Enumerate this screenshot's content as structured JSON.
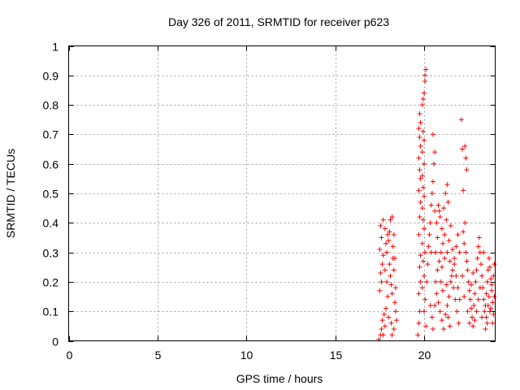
{
  "chart_data": {
    "type": "scatter",
    "title": "Day 326 of 2011, SRMTID for receiver p623",
    "xlabel": "GPS time / hours",
    "ylabel": "SRMTID / TECUs",
    "xlim": [
      0,
      24
    ],
    "ylim": [
      0,
      1
    ],
    "x_ticks": [
      "0",
      "5",
      "10",
      "15",
      "20"
    ],
    "y_ticks": [
      "0",
      "0.1",
      "0.2",
      "0.3",
      "0.4",
      "0.5",
      "0.6",
      "0.7",
      "0.8",
      "0.9",
      "1"
    ],
    "grid": true,
    "marker": "plus",
    "color": "#ff0000",
    "series": [
      {
        "points": [
          [
            17.45,
            0.005
          ],
          [
            17.55,
            0.02
          ],
          [
            17.6,
            0.04
          ],
          [
            17.65,
            0.07
          ],
          [
            17.7,
            0.02
          ],
          [
            17.75,
            0.09
          ],
          [
            17.8,
            0.05
          ],
          [
            17.85,
            0.11
          ],
          [
            17.5,
            0.17
          ],
          [
            17.6,
            0.2
          ],
          [
            17.55,
            0.23
          ],
          [
            17.65,
            0.26
          ],
          [
            17.7,
            0.29
          ],
          [
            17.5,
            0.31
          ],
          [
            17.6,
            0.35
          ],
          [
            17.55,
            0.39
          ],
          [
            17.7,
            0.41
          ],
          [
            17.8,
            0.38
          ],
          [
            17.85,
            0.33
          ],
          [
            17.9,
            0.3
          ],
          [
            17.95,
            0.36
          ],
          [
            18.0,
            0.34
          ],
          [
            18.05,
            0.26
          ],
          [
            18.1,
            0.22
          ],
          [
            18.15,
            0.19
          ],
          [
            18.2,
            0.16
          ],
          [
            18.25,
            0.28
          ],
          [
            18.3,
            0.24
          ],
          [
            18.35,
            0.13
          ],
          [
            18.4,
            0.1
          ],
          [
            18.45,
            0.07
          ],
          [
            18.3,
            0.04
          ],
          [
            18.2,
            0.02
          ],
          [
            18.1,
            0.41
          ],
          [
            18.2,
            0.42
          ],
          [
            18.05,
            0.37
          ],
          [
            18.3,
            0.36
          ],
          [
            17.95,
            0.15
          ],
          [
            18.0,
            0.08
          ],
          [
            18.15,
            0.06
          ],
          [
            17.9,
            0.2
          ],
          [
            18.4,
            0.18
          ],
          [
            18.35,
            0.28
          ],
          [
            17.8,
            0.24
          ],
          [
            18.25,
            0.32
          ],
          [
            19.65,
            0.02
          ],
          [
            19.7,
            0.06
          ],
          [
            19.75,
            0.1
          ],
          [
            19.7,
            0.16
          ],
          [
            19.8,
            0.2
          ],
          [
            19.75,
            0.25
          ],
          [
            19.8,
            0.29
          ],
          [
            19.7,
            0.36
          ],
          [
            19.75,
            0.42
          ],
          [
            19.8,
            0.47
          ],
          [
            19.7,
            0.51
          ],
          [
            19.8,
            0.55
          ],
          [
            19.75,
            0.58
          ],
          [
            19.7,
            0.62
          ],
          [
            19.8,
            0.66
          ],
          [
            19.75,
            0.69
          ],
          [
            19.7,
            0.72
          ],
          [
            19.8,
            0.74
          ],
          [
            19.75,
            0.77
          ],
          [
            19.9,
            0.8
          ],
          [
            19.95,
            0.82
          ],
          [
            20.0,
            0.84
          ],
          [
            20.05,
            0.88
          ],
          [
            20.1,
            0.92
          ],
          [
            20.05,
            0.9
          ],
          [
            19.95,
            0.71
          ],
          [
            20.0,
            0.68
          ],
          [
            19.9,
            0.64
          ],
          [
            20.0,
            0.6
          ],
          [
            19.9,
            0.56
          ],
          [
            19.95,
            0.52
          ],
          [
            20.0,
            0.49
          ],
          [
            19.9,
            0.45
          ],
          [
            19.95,
            0.41
          ],
          [
            20.0,
            0.38
          ],
          [
            19.9,
            0.33
          ],
          [
            20.05,
            0.3
          ],
          [
            19.95,
            0.27
          ],
          [
            20.0,
            0.22
          ],
          [
            19.9,
            0.18
          ],
          [
            20.05,
            0.14
          ],
          [
            20.0,
            0.1
          ],
          [
            20.1,
            0.05
          ],
          [
            20.15,
            0.2
          ],
          [
            20.2,
            0.26
          ],
          [
            20.25,
            0.32
          ],
          [
            20.3,
            0.36
          ],
          [
            20.35,
            0.4
          ],
          [
            20.4,
            0.46
          ],
          [
            20.45,
            0.5
          ],
          [
            20.5,
            0.54
          ],
          [
            20.55,
            0.6
          ],
          [
            20.6,
            0.64
          ],
          [
            20.5,
            0.7
          ],
          [
            20.4,
            0.3
          ],
          [
            20.35,
            0.12
          ],
          [
            20.45,
            0.08
          ],
          [
            20.5,
            0.04
          ],
          [
            20.6,
            0.44
          ],
          [
            20.7,
            0.4
          ],
          [
            20.8,
            0.46
          ],
          [
            20.9,
            0.42
          ],
          [
            21.0,
            0.38
          ],
          [
            21.1,
            0.45
          ],
          [
            21.2,
            0.5
          ],
          [
            21.3,
            0.53
          ],
          [
            21.35,
            0.47
          ],
          [
            21.25,
            0.41
          ],
          [
            21.15,
            0.36
          ],
          [
            21.05,
            0.33
          ],
          [
            20.95,
            0.3
          ],
          [
            20.85,
            0.27
          ],
          [
            20.75,
            0.24
          ],
          [
            20.65,
            0.2
          ],
          [
            20.7,
            0.16
          ],
          [
            20.8,
            0.13
          ],
          [
            20.9,
            0.1
          ],
          [
            21.0,
            0.07
          ],
          [
            21.1,
            0.04
          ],
          [
            21.2,
            0.09
          ],
          [
            21.3,
            0.12
          ],
          [
            21.4,
            0.15
          ],
          [
            21.5,
            0.2
          ],
          [
            21.6,
            0.24
          ],
          [
            21.7,
            0.28
          ],
          [
            21.8,
            0.32
          ],
          [
            21.9,
            0.36
          ],
          [
            22.0,
            0.3
          ],
          [
            21.45,
            0.27
          ],
          [
            21.55,
            0.22
          ],
          [
            21.65,
            0.18
          ],
          [
            21.75,
            0.14
          ],
          [
            21.85,
            0.1
          ],
          [
            21.95,
            0.06
          ],
          [
            20.75,
            0.35
          ],
          [
            20.85,
            0.44
          ],
          [
            21.0,
            0.25
          ],
          [
            21.15,
            0.28
          ],
          [
            21.3,
            0.3
          ],
          [
            21.4,
            0.34
          ],
          [
            21.5,
            0.39
          ],
          [
            21.6,
            0.31
          ],
          [
            21.7,
            0.26
          ],
          [
            21.8,
            0.22
          ],
          [
            21.9,
            0.18
          ],
          [
            22.0,
            0.14
          ],
          [
            20.65,
            0.3
          ],
          [
            20.6,
            0.12
          ],
          [
            20.95,
            0.2
          ],
          [
            21.05,
            0.17
          ],
          [
            21.25,
            0.19
          ],
          [
            21.35,
            0.08
          ],
          [
            21.45,
            0.05
          ],
          [
            22.1,
            0.75
          ],
          [
            22.15,
            0.65
          ],
          [
            22.2,
            0.51
          ],
          [
            22.3,
            0.66
          ],
          [
            22.35,
            0.62
          ],
          [
            22.4,
            0.58
          ],
          [
            22.3,
            0.4
          ],
          [
            22.2,
            0.37
          ],
          [
            22.25,
            0.33
          ],
          [
            22.35,
            0.3
          ],
          [
            22.4,
            0.27
          ],
          [
            22.45,
            0.24
          ],
          [
            22.5,
            0.2
          ],
          [
            22.55,
            0.17
          ],
          [
            22.6,
            0.14
          ],
          [
            22.65,
            0.11
          ],
          [
            22.7,
            0.08
          ],
          [
            22.75,
            0.05
          ],
          [
            22.8,
            0.12
          ],
          [
            22.85,
            0.16
          ],
          [
            22.9,
            0.2
          ],
          [
            22.95,
            0.24
          ],
          [
            23.0,
            0.28
          ],
          [
            23.05,
            0.32
          ],
          [
            23.1,
            0.35
          ],
          [
            23.15,
            0.3
          ],
          [
            23.2,
            0.26
          ],
          [
            23.25,
            0.22
          ],
          [
            23.3,
            0.18
          ],
          [
            23.35,
            0.14
          ],
          [
            23.4,
            0.1
          ],
          [
            23.45,
            0.12
          ],
          [
            23.5,
            0.16
          ],
          [
            23.55,
            0.2
          ],
          [
            23.6,
            0.24
          ],
          [
            23.65,
            0.28
          ],
          [
            23.7,
            0.25
          ],
          [
            23.75,
            0.21
          ],
          [
            23.8,
            0.17
          ],
          [
            23.85,
            0.13
          ],
          [
            23.9,
            0.09
          ],
          [
            23.95,
            0.15
          ],
          [
            23.5,
            0.08
          ],
          [
            23.6,
            0.12
          ],
          [
            23.7,
            0.1
          ],
          [
            23.8,
            0.19
          ],
          [
            23.9,
            0.22
          ],
          [
            23.95,
            0.26
          ],
          [
            22.15,
            0.22
          ],
          [
            22.25,
            0.15
          ],
          [
            22.45,
            0.1
          ],
          [
            22.55,
            0.06
          ],
          [
            22.65,
            0.19
          ],
          [
            22.75,
            0.23
          ],
          [
            22.85,
            0.07
          ],
          [
            22.95,
            0.1
          ],
          [
            23.05,
            0.14
          ],
          [
            23.15,
            0.18
          ],
          [
            23.25,
            0.08
          ],
          [
            23.35,
            0.3
          ],
          [
            23.45,
            0.04
          ],
          [
            23.55,
            0.06
          ],
          [
            23.65,
            0.15
          ],
          [
            23.75,
            0.11
          ],
          [
            23.85,
            0.06
          ]
        ]
      }
    ]
  }
}
